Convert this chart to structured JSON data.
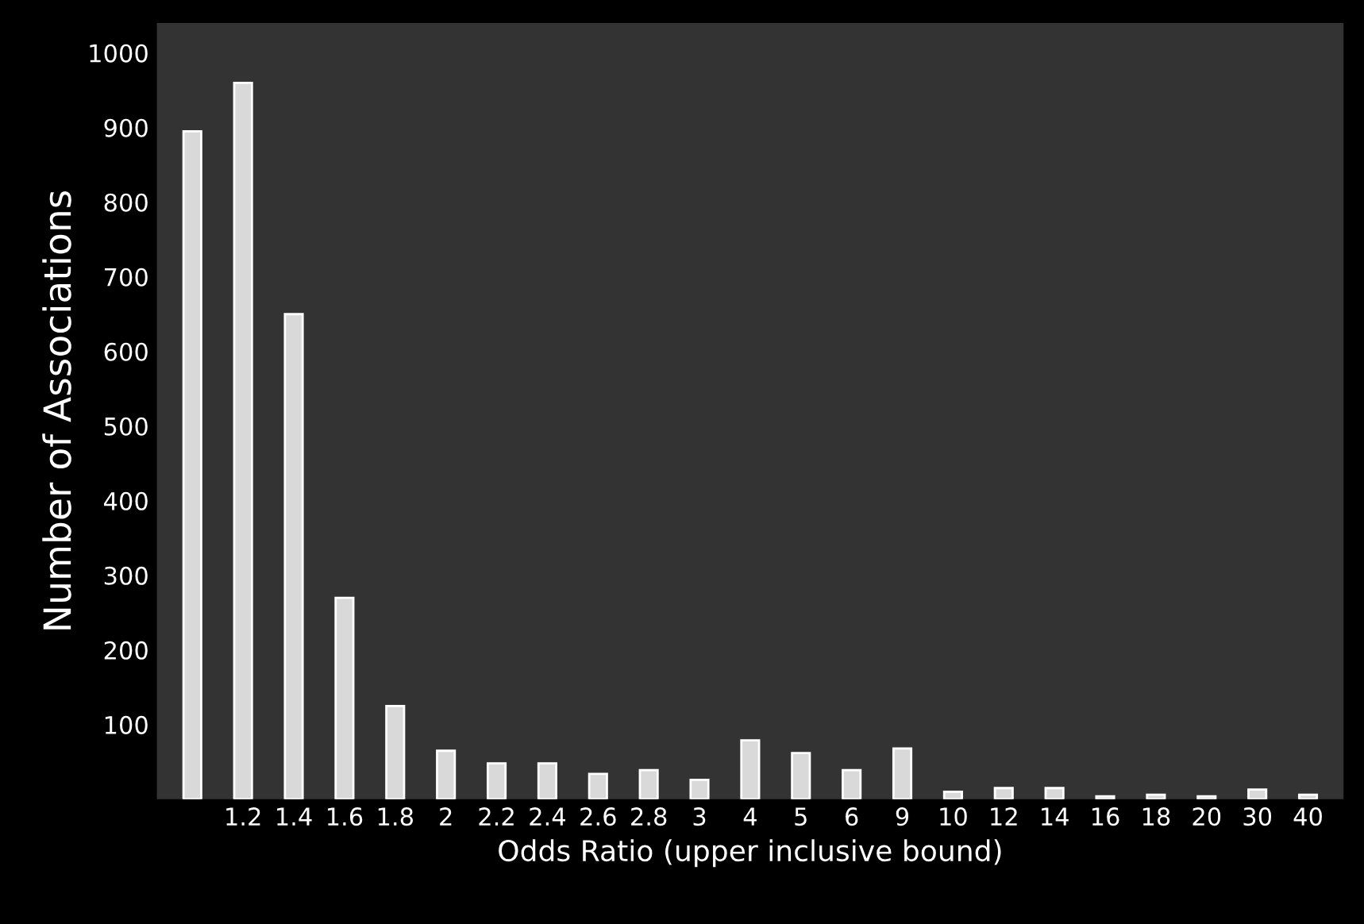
{
  "chart_data": {
    "type": "bar",
    "xlabel": "Odds Ratio (upper inclusive bound)",
    "ylabel": "Number of Associations",
    "categories": [
      null,
      "1.2",
      "1.4",
      "1.6",
      "1.8",
      "2",
      "2.2",
      "2.4",
      "2.6",
      "2.8",
      "3",
      "4",
      "5",
      "6",
      "9",
      "10",
      "12",
      "14",
      "16",
      "18",
      "20",
      "30",
      "40"
    ],
    "values": [
      895,
      960,
      650,
      270,
      125,
      65,
      48,
      48,
      34,
      39,
      26,
      79,
      62,
      39,
      68,
      10,
      15,
      15,
      4,
      6,
      4,
      13,
      6
    ],
    "color": "#d9d9d9",
    "ylim": [
      0,
      1040
    ],
    "yticks": [
      100,
      200,
      300,
      400,
      500,
      600,
      700,
      800,
      900,
      1000
    ],
    "grid": false
  }
}
